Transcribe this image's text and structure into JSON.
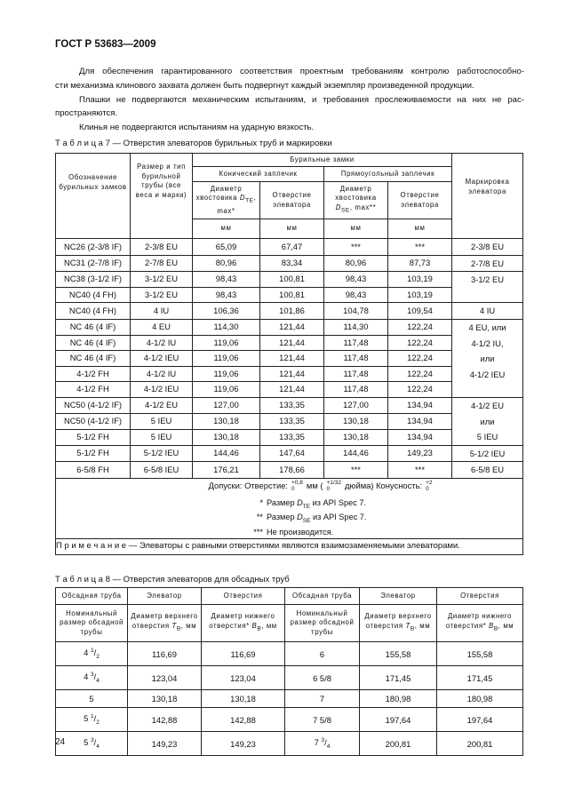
{
  "header": {
    "title": "ГОСТ Р 53683—2009"
  },
  "paragraphs": [
    [
      "Для обеспечения гарантированного соответствия проектным требованиям контролю работоспособно-",
      "сти механизма клинового захвата должен быть подвергнут каждый экземпляр произведенной продукции."
    ],
    [
      "Плашки не подвергаются механическим испытаниям, и требования прослеживаемости на них не рас-",
      "пространяются."
    ],
    [
      "Клинья не подвергаются испытаниям на ударную вязкость."
    ]
  ],
  "table7": {
    "caption": "Т а б л и ц а 7 — Отверстия элеваторов бурильных труб и маркировки",
    "headers": {
      "designation": "Обозначение бурильных замков",
      "pipe": "Размер и тип бурильной трубы (все веса и марки)",
      "tool_joints": "Бурильные замки",
      "conical": "Конический заплечик",
      "square": "Прямоугольный заплечик",
      "conical_diameter": {
        "text": "Диаметр хвостовика ",
        "symbol": "D",
        "sub": "TE",
        "suffix": ", max*"
      },
      "conical_bore": "Отверстие элеватора",
      "square_diameter": {
        "text": "Диаметр хвостовика ",
        "symbol": "D",
        "sub": "SE",
        "suffix": ", max**"
      },
      "square_bore": "Отверстие элеватора",
      "units": [
        "мм",
        "мм",
        "мм",
        "мм"
      ],
      "marking": "Маркировка элеватора"
    },
    "row_groups": [
      {
        "rows": [
          [
            "NC26 (2-3/8 IF)",
            "2-3/8 EU",
            "65,09",
            "67,47",
            "***",
            "***"
          ]
        ],
        "marking": [
          "2-3/8 EU"
        ]
      },
      {
        "rows": [
          [
            "NC31 (2-7/8 IF)",
            "2-7/8 EU",
            "80,96",
            "83,34",
            "80,96",
            "87,73"
          ]
        ],
        "marking": [
          "2-7/8 EU"
        ]
      },
      {
        "rows": [
          [
            "NC38 (3-1/2 IF)",
            "3-1/2 EU",
            "98,43",
            "100,81",
            "98,43",
            "103,19"
          ],
          [
            "NC40 (4 FH)",
            "3-1/2 EU",
            "98,43",
            "100,81",
            "98,43",
            "103,19"
          ]
        ],
        "marking": [
          "3-1/2 EU"
        ]
      },
      {
        "rows": [
          [
            "NC40 (4 FH)",
            "4 IU",
            "106,36",
            "101,86",
            "104,78",
            "109,54"
          ]
        ],
        "marking": [
          "4 IU"
        ]
      },
      {
        "rows": [
          [
            "NC 46 (4 IF)",
            "4 EU",
            "114,30",
            "121,44",
            "114,30",
            "122,24"
          ],
          [
            "NC 46 (4 IF)",
            "4-1/2 IU",
            "119,06",
            "121,44",
            "117,48",
            "122,24"
          ],
          [
            "NC 46 (4 IF)",
            "4-1/2 IEU",
            "119,06",
            "121,44",
            "117,48",
            "122,24"
          ],
          [
            "4-1/2 FH",
            "4-1/2 IU",
            "119,06",
            "121,44",
            "117,48",
            "122,24"
          ],
          [
            "4-1/2 FH",
            "4-1/2 IEU",
            "119,06",
            "121,44",
            "117,48",
            "122,24"
          ]
        ],
        "marking": [
          "4 EU, или",
          "4-1/2 IU,",
          "или",
          "4-1/2 IEU"
        ]
      },
      {
        "rows": [
          [
            "NC50 (4-1/2 IF)",
            "4-1/2 EU",
            "127,00",
            "133,35",
            "127,00",
            "134,94"
          ],
          [
            "NC50 (4-1/2 IF)",
            "5 IEU",
            "130,18",
            "133,35",
            "130,18",
            "134,94"
          ],
          [
            "5-1/2 FH",
            "5 IEU",
            "130,18",
            "133,35",
            "130,18",
            "134,94"
          ]
        ],
        "marking": [
          "4-1/2 EU",
          "или",
          "5 IEU"
        ]
      },
      {
        "rows": [
          [
            "5-1/2 FH",
            "5-1/2 IEU",
            "144,46",
            "147,64",
            "144,46",
            "149,23"
          ]
        ],
        "marking": [
          "5-1/2 IEU"
        ]
      },
      {
        "rows": [
          [
            "6-5/8 FH",
            "6-5/8 IEU",
            "176,21",
            "178,66",
            "***",
            "***"
          ]
        ],
        "marking": [
          "6-5/8 EU"
        ]
      }
    ],
    "tolerances": {
      "label": "Допуски: Отверстие:",
      "hole": {
        "upper": "+0,8",
        "lower": "0"
      },
      "mm": "мм (",
      "inch": {
        "upper": "+1/32",
        "lower": "0"
      },
      "inch_unit": "дюйма) Конусность:",
      "taper": {
        "upper": "+2",
        "lower": "0"
      }
    },
    "footnotes": [
      {
        "mark": "*",
        "text": "Размер ",
        "symbol": "D",
        "sub": "TE",
        "suffix": " из API Spec 7."
      },
      {
        "mark": "**",
        "text": "Размер ",
        "symbol": "D",
        "sub": "SE",
        "suffix": " из API Spec 7."
      },
      {
        "mark": "***",
        "text": "Не производится."
      }
    ],
    "note": "П р и м е ч а н и е — Элеваторы с равными отверстиями являются взаимозаменяемыми элеваторами."
  },
  "table8": {
    "caption": "Т а б л и ц а 8 — Отверстия элеваторов для обсадных труб",
    "headers": [
      "Обсадная труба",
      "Элеватор",
      "Отверстия",
      "Обсадная труба",
      "Элеватор",
      "Отверстия"
    ],
    "subheaders": [
      "Номинальный размер обсадной трубы",
      {
        "text": "Диаметр верхнего отверстия ",
        "symbol": "T",
        "sub": "В",
        "suffix": ", мм"
      },
      {
        "text": "Диаметр нижнего отверстия* ",
        "symbol": "B",
        "sub": "В",
        "suffix": ", мм"
      },
      "Номинальный размер обсадной трубы",
      {
        "text": "Диаметр верхнего отверстия ",
        "symbol": "T",
        "sub": "В",
        "suffix": ", мм"
      },
      {
        "text": "Диаметр нижнего отверстия* ",
        "symbol": "B",
        "sub": "В",
        "suffix": ", мм"
      }
    ],
    "rows": [
      [
        {
          "whole": "4 ",
          "sup": "1",
          "slash": "/",
          "sub": "2"
        },
        "116,69",
        "116,69",
        "6",
        "155,58",
        "155,58"
      ],
      [
        {
          "whole": "4 ",
          "sup": "3",
          "slash": "/",
          "sub": "4"
        },
        "123,04",
        "123,04",
        "6 5/8",
        "171,45",
        "171,45"
      ],
      [
        "5",
        "130,18",
        "130,18",
        "7",
        "180,98",
        "180,98"
      ],
      [
        {
          "whole": "5 ",
          "sup": "1",
          "slash": "/",
          "sub": "2"
        },
        "142,88",
        "142,88",
        "7 5/8",
        "197,64",
        "197,64"
      ],
      [
        {
          "whole": "5 ",
          "sup": "3",
          "slash": "/",
          "sub": "4"
        },
        "149,23",
        "149,23",
        {
          "whole": "7 ",
          "sup": "3",
          "slash": "/",
          "sub": "4"
        },
        "200,81",
        "200,81"
      ]
    ]
  },
  "page_number": "24"
}
